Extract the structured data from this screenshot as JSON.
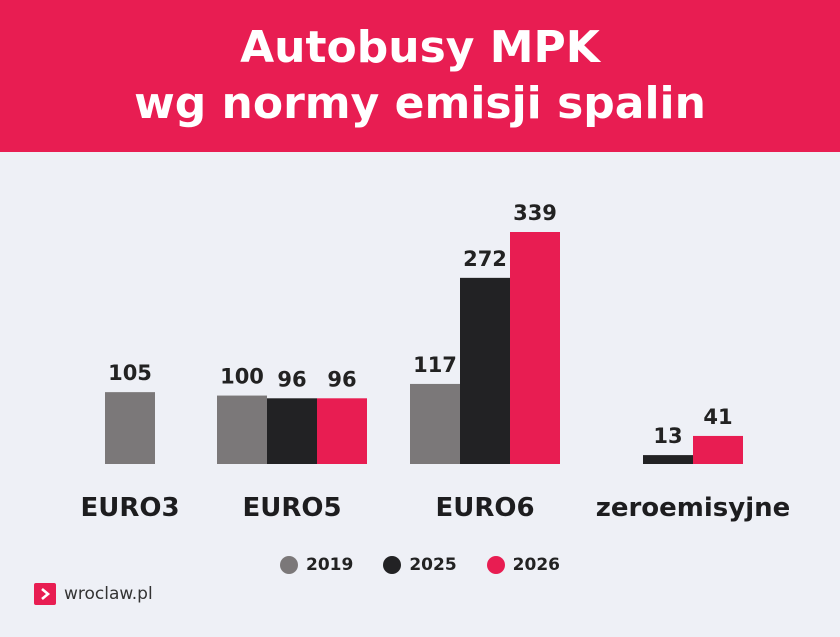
{
  "header": {
    "title_line1": "Autobusy MPK",
    "title_line2": "wg normy emisji spalin"
  },
  "chart_data": {
    "type": "bar",
    "title": "Autobusy MPK wg normy emisji spalin",
    "categories": [
      "EURO3",
      "EURO5",
      "EURO6",
      "zeroemisyjne"
    ],
    "series": [
      {
        "name": "2019",
        "color": "#7b7879",
        "values": [
          105,
          100,
          117,
          null
        ]
      },
      {
        "name": "2025",
        "color": "#222224",
        "values": [
          null,
          96,
          272,
          13
        ]
      },
      {
        "name": "2026",
        "color": "#e81d52",
        "values": [
          null,
          96,
          339,
          41
        ]
      }
    ],
    "legend_position": "bottom",
    "grid": false
  },
  "brand": {
    "text": "wroclaw.pl"
  }
}
